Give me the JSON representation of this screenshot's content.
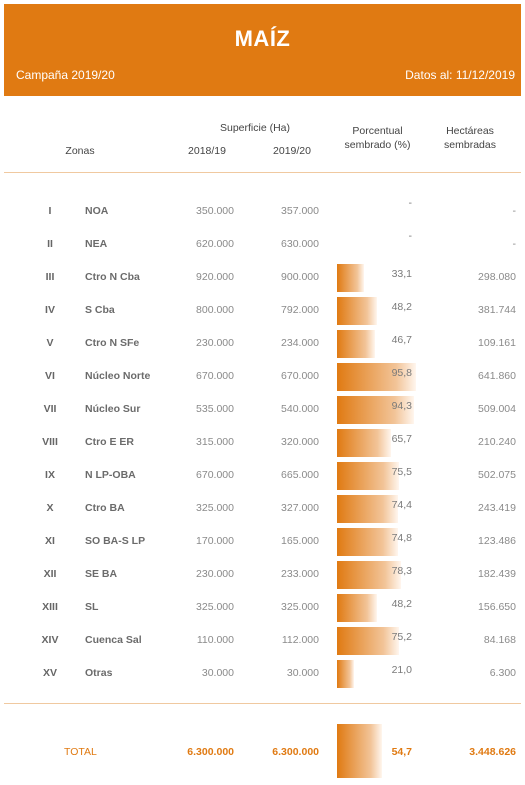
{
  "header": {
    "title": "MAÍZ",
    "campaign": "Campaña 2019/20",
    "date": "Datos al: 11/12/2019"
  },
  "columns": {
    "zones": "Zonas",
    "surface": "Superficie (Ha)",
    "year1": "2018/19",
    "year2": "2019/20",
    "percent_line1": "Porcentual",
    "percent_line2": "sembrado (%)",
    "hectares_line1": "Hectáreas",
    "hectares_line2": "sembradas"
  },
  "rows": [
    {
      "num": "I",
      "zone": "NOA",
      "s1": "350.000",
      "s2": "357.000",
      "pct": "-",
      "pct_value": null,
      "ha": "-"
    },
    {
      "num": "II",
      "zone": "NEA",
      "s1": "620.000",
      "s2": "630.000",
      "pct": "-",
      "pct_value": null,
      "ha": "-"
    },
    {
      "num": "III",
      "zone": "Ctro N Cba",
      "s1": "920.000",
      "s2": "900.000",
      "pct": "33,1",
      "pct_value": 33.1,
      "ha": "298.080"
    },
    {
      "num": "IV",
      "zone": "S Cba",
      "s1": "800.000",
      "s2": "792.000",
      "pct": "48,2",
      "pct_value": 48.2,
      "ha": "381.744"
    },
    {
      "num": "V",
      "zone": "Ctro N SFe",
      "s1": "230.000",
      "s2": "234.000",
      "pct": "46,7",
      "pct_value": 46.7,
      "ha": "109.161"
    },
    {
      "num": "VI",
      "zone": "Núcleo Norte",
      "s1": "670.000",
      "s2": "670.000",
      "pct": "95,8",
      "pct_value": 95.8,
      "ha": "641.860"
    },
    {
      "num": "VII",
      "zone": "Núcleo Sur",
      "s1": "535.000",
      "s2": "540.000",
      "pct": "94,3",
      "pct_value": 94.3,
      "ha": "509.004"
    },
    {
      "num": "VIII",
      "zone": "Ctro E ER",
      "s1": "315.000",
      "s2": "320.000",
      "pct": "65,7",
      "pct_value": 65.7,
      "ha": "210.240"
    },
    {
      "num": "IX",
      "zone": "N LP-OBA",
      "s1": "670.000",
      "s2": "665.000",
      "pct": "75,5",
      "pct_value": 75.5,
      "ha": "502.075"
    },
    {
      "num": "X",
      "zone": "Ctro BA",
      "s1": "325.000",
      "s2": "327.000",
      "pct": "74,4",
      "pct_value": 74.4,
      "ha": "243.419"
    },
    {
      "num": "XI",
      "zone": "SO BA-S LP",
      "s1": "170.000",
      "s2": "165.000",
      "pct": "74,8",
      "pct_value": 74.8,
      "ha": "123.486"
    },
    {
      "num": "XII",
      "zone": "SE BA",
      "s1": "230.000",
      "s2": "233.000",
      "pct": "78,3",
      "pct_value": 78.3,
      "ha": "182.439"
    },
    {
      "num": "XIII",
      "zone": "SL",
      "s1": "325.000",
      "s2": "325.000",
      "pct": "48,2",
      "pct_value": 48.2,
      "ha": "156.650"
    },
    {
      "num": "XIV",
      "zone": "Cuenca Sal",
      "s1": "110.000",
      "s2": "112.000",
      "pct": "75,2",
      "pct_value": 75.2,
      "ha": "84.168"
    },
    {
      "num": "XV",
      "zone": "Otras",
      "s1": "30.000",
      "s2": "30.000",
      "pct": "21,0",
      "pct_value": 21.0,
      "ha": "6.300"
    }
  ],
  "total": {
    "label": "TOTAL",
    "s1": "6.300.000",
    "s2": "6.300.000",
    "pct": "54,7",
    "pct_value": 54.7,
    "ha": "3.448.626"
  },
  "colors": {
    "accent": "#e07a12",
    "bar_light": "#f2c498"
  }
}
